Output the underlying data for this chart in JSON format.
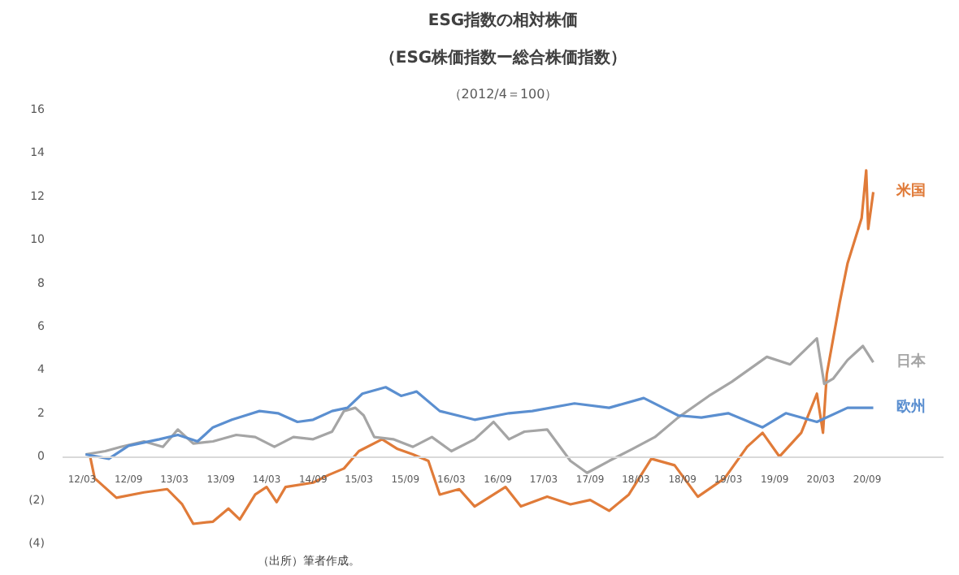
{
  "chart_data": {
    "type": "line",
    "title": "ESG指数の相対株価",
    "subtitle": "（ESG株価指数ー総合株価指数）",
    "annotations": [
      "（2012/4＝100）",
      "（出所）筆者作成。"
    ],
    "xlim": [
      "2011-12-15",
      "2021-06-30"
    ],
    "ylim": [
      -4,
      16
    ],
    "xticks": [
      {
        "value": "2012-03-01",
        "label": "12/03"
      },
      {
        "value": "2012-09-01",
        "label": "12/09"
      },
      {
        "value": "2013-03-01",
        "label": "13/03"
      },
      {
        "value": "2013-09-01",
        "label": "13/09"
      },
      {
        "value": "2014-03-01",
        "label": "14/03"
      },
      {
        "value": "2014-09-01",
        "label": "14/09"
      },
      {
        "value": "2015-03-01",
        "label": "15/03"
      },
      {
        "value": "2015-09-01",
        "label": "15/09"
      },
      {
        "value": "2016-03-01",
        "label": "16/03"
      },
      {
        "value": "2016-09-01",
        "label": "16/09"
      },
      {
        "value": "2017-03-01",
        "label": "17/03"
      },
      {
        "value": "2017-09-01",
        "label": "17/09"
      },
      {
        "value": "2018-03-01",
        "label": "18/03"
      },
      {
        "value": "2018-09-01",
        "label": "18/09"
      },
      {
        "value": "2019-03-01",
        "label": "19/03"
      },
      {
        "value": "2019-09-01",
        "label": "19/09"
      },
      {
        "value": "2020-03-01",
        "label": "20/03"
      },
      {
        "value": "2020-09-01",
        "label": "20/09"
      }
    ],
    "yticks": [
      {
        "value": -4,
        "label": "(4)"
      },
      {
        "value": -2,
        "label": "(2)"
      },
      0,
      2,
      4,
      6,
      8,
      10,
      12,
      14,
      16
    ],
    "grid": false,
    "legend": false,
    "marker": "none",
    "line_style": "solid",
    "series": [
      {
        "name": "米国",
        "color": "#e07b39",
        "x": [
          "2012-04-02",
          "2012-04-20",
          "2012-07-15",
          "2012-11-01",
          "2013-02-01",
          "2013-04-01",
          "2013-05-15",
          "2013-08-01",
          "2013-10-01",
          "2013-11-15",
          "2014-01-15",
          "2014-03-01",
          "2014-04-10",
          "2014-05-15",
          "2014-09-01",
          "2014-11-01",
          "2015-01-01",
          "2015-03-01",
          "2015-06-01",
          "2015-08-01",
          "2015-10-01",
          "2015-12-01",
          "2016-01-15",
          "2016-04-01",
          "2016-06-01",
          "2016-10-01",
          "2016-12-01",
          "2017-03-15",
          "2017-06-15",
          "2017-09-01",
          "2017-11-15",
          "2018-02-01",
          "2018-05-01",
          "2018-08-01",
          "2018-11-01",
          "2019-02-15",
          "2019-05-15",
          "2019-07-15",
          "2019-09-20",
          "2019-12-15",
          "2020-02-15",
          "2020-03-10",
          "2020-03-25",
          "2020-05-15",
          "2020-06-15",
          "2020-08-10",
          "2020-08-28",
          "2020-09-05",
          "2020-09-25"
        ],
        "values": [
          0,
          -1.0,
          -1.9,
          -1.65,
          -1.5,
          -2.2,
          -3.1,
          -3.0,
          -2.4,
          -2.9,
          -1.75,
          -1.4,
          -2.1,
          -1.4,
          -1.2,
          -0.85,
          -0.55,
          0.25,
          0.8,
          0.35,
          0.1,
          -0.2,
          -1.75,
          -1.5,
          -2.3,
          -1.4,
          -2.3,
          -1.85,
          -2.2,
          -2.0,
          -2.5,
          -1.75,
          -0.1,
          -0.4,
          -1.85,
          -1.0,
          0.45,
          1.1,
          0.0,
          1.1,
          2.9,
          1.1,
          3.8,
          7.1,
          8.9,
          11.0,
          13.2,
          10.5,
          12.2
        ]
      },
      {
        "name": "日本",
        "color": "#a5a5a5",
        "x": [
          "2012-03-15",
          "2012-06-01",
          "2012-08-01",
          "2012-11-01",
          "2013-01-15",
          "2013-03-15",
          "2013-05-15",
          "2013-08-01",
          "2013-11-01",
          "2014-01-15",
          "2014-04-01",
          "2014-06-15",
          "2014-09-01",
          "2014-11-15",
          "2015-01-01",
          "2015-02-15",
          "2015-03-20",
          "2015-05-01",
          "2015-07-15",
          "2015-10-01",
          "2015-12-15",
          "2016-03-01",
          "2016-06-01",
          "2016-08-15",
          "2016-10-15",
          "2016-12-15",
          "2017-03-15",
          "2017-06-15",
          "2017-08-20",
          "2017-11-15",
          "2018-02-15",
          "2018-05-15",
          "2018-08-15",
          "2018-12-15",
          "2019-03-15",
          "2019-08-01",
          "2019-11-01",
          "2020-02-15",
          "2020-03-15",
          "2020-04-20",
          "2020-06-15",
          "2020-08-15",
          "2020-09-25"
        ],
        "values": [
          0.1,
          0.25,
          0.45,
          0.7,
          0.45,
          1.25,
          0.6,
          0.7,
          1.0,
          0.9,
          0.45,
          0.9,
          0.8,
          1.15,
          2.1,
          2.25,
          1.9,
          0.9,
          0.8,
          0.45,
          0.9,
          0.25,
          0.8,
          1.6,
          0.8,
          1.15,
          1.25,
          -0.2,
          -0.75,
          -0.2,
          0.35,
          0.9,
          1.8,
          2.8,
          3.45,
          4.6,
          4.25,
          5.45,
          3.35,
          3.6,
          4.45,
          5.1,
          4.35
        ]
      },
      {
        "name": "欧州",
        "color": "#5b8fd0",
        "x": [
          "2012-03-15",
          "2012-06-15",
          "2012-09-01",
          "2013-01-01",
          "2013-03-15",
          "2013-06-01",
          "2013-08-01",
          "2013-10-15",
          "2014-02-01",
          "2014-04-15",
          "2014-07-01",
          "2014-09-01",
          "2014-11-15",
          "2015-01-15",
          "2015-03-15",
          "2015-06-15",
          "2015-08-15",
          "2015-10-15",
          "2016-01-15",
          "2016-06-01",
          "2016-10-15",
          "2017-01-15",
          "2017-07-01",
          "2017-11-15",
          "2018-04-01",
          "2018-08-15",
          "2018-11-15",
          "2019-03-01",
          "2019-07-15",
          "2019-10-15",
          "2020-02-15",
          "2020-06-15",
          "2020-09-25"
        ],
        "values": [
          0.1,
          -0.1,
          0.5,
          0.8,
          1.0,
          0.7,
          1.35,
          1.7,
          2.1,
          2.0,
          1.6,
          1.7,
          2.1,
          2.25,
          2.9,
          3.2,
          2.8,
          3.0,
          2.1,
          1.7,
          2.0,
          2.1,
          2.45,
          2.25,
          2.7,
          1.9,
          1.8,
          2.0,
          1.35,
          2.0,
          1.6,
          2.25,
          2.25
        ]
      }
    ]
  }
}
